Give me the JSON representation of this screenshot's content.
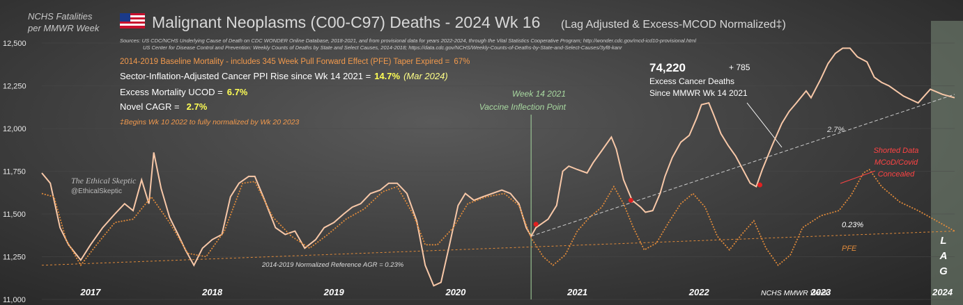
{
  "header": {
    "y_axis_caption_line1": "NCHS Fatalities",
    "y_axis_caption_line2": "per MMWR Week",
    "title": "Malignant Neoplasms (C00-C97) Deaths - 2024 Wk 16",
    "title_suffix": "(Lag Adjusted & Excess-MCOD Normalized‡)",
    "source_line1": "Sources: US CDC/NCHS Underlying Cause of Death on CDC WONDER Online Database, 2018-2021, and from provisional data for years 2022-2024, through the Vital Statistics Cooperative Program; http://wonder.cdc.gov/mcd-icd10-provisional.html",
    "source_line2": "US Center for Disease Control and Prevention: Weekly Counts of Deaths by State and Select Causes, 2014-2018; https://data.cdc.gov/NCHS/Weekly-Counts-of-Deaths-by-State-and-Select-Causes/3yf8-kanr"
  },
  "stats": {
    "baseline": "2014-2019 Baseline Mortality - includes 345 Week Pull Forward Effect (PFE) Taper Expired =",
    "baseline_value": "67%",
    "ppi_label": "Sector-Inflation-Adjusted Cancer PPI Rise since Wk 14 2021  =",
    "ppi_value": "14.7%",
    "ppi_date": "(Mar 2024)",
    "excess_label": "Excess Mortality  UCOD =",
    "excess_value": "6.7%",
    "cagr_label": "Novel CAGR =",
    "cagr_value": "2.7%",
    "footnote": "‡Begins Wk 10 2022 to fully normalized by Wk 20 2023"
  },
  "annotations": {
    "excess_total": "74,220",
    "excess_plus": "+ 785",
    "excess_line1": "Excess Cancer Deaths",
    "excess_line2": "Since MMWR Wk 14 2021",
    "inflection_line1": "Week 14 2021",
    "inflection_line2": "Vaccine Inflection Point",
    "trend_rate": "2.7%",
    "baseline_rate": "0.23%",
    "reference_label": "2014-2019 Normalized Reference AGR = 0.23%",
    "pfe": "PFE",
    "shorted_line1": "Shorted Data",
    "shorted_line2": "MCoD/Covid",
    "shorted_line3": "Concealed",
    "lag_l": "L",
    "lag_a": "A",
    "lag_g": "G",
    "x_axis_label": "NCHS MMWR Week",
    "watermark_line1": "The Ethical Skeptic",
    "watermark_line2": "@EthicalSkeptic"
  },
  "colors": {
    "actual": "#f8c8a8",
    "expected": "#e08a3a",
    "trend": "#cccccc",
    "marker": "#e02020",
    "shorted": "#ff4444",
    "inflection": "#a8d8a0"
  },
  "chart_data": {
    "type": "line",
    "title": "Malignant Neoplasms (C00-C97) Deaths - 2024 Wk 16",
    "ylabel": "NCHS Fatalities per MMWR Week",
    "xlabel": "NCHS MMWR Week",
    "ylim": [
      11000,
      12500
    ],
    "y_ticks": [
      11000,
      11250,
      11500,
      11750,
      12000,
      12250,
      12500
    ],
    "x_range": [
      2016.8,
      2024.3
    ],
    "year_labels": [
      "2017",
      "2018",
      "2019",
      "2020",
      "2021",
      "2022",
      "2023",
      "2024"
    ],
    "year_positions": [
      2017.0,
      2018.0,
      2019.0,
      2020.0,
      2021.0,
      2022.0,
      2023.0,
      2024.0
    ],
    "series": [
      {
        "name": "actual",
        "points": [
          [
            2016.8,
            11740
          ],
          [
            2016.87,
            11680
          ],
          [
            2016.95,
            11420
          ],
          [
            2017.02,
            11320
          ],
          [
            2017.12,
            11230
          ],
          [
            2017.2,
            11320
          ],
          [
            2017.3,
            11420
          ],
          [
            2017.4,
            11500
          ],
          [
            2017.48,
            11560
          ],
          [
            2017.55,
            11520
          ],
          [
            2017.62,
            11700
          ],
          [
            2017.68,
            11560
          ],
          [
            2017.72,
            11860
          ],
          [
            2017.78,
            11650
          ],
          [
            2017.85,
            11480
          ],
          [
            2017.92,
            11380
          ],
          [
            2017.98,
            11290
          ],
          [
            2018.05,
            11200
          ],
          [
            2018.12,
            11300
          ],
          [
            2018.2,
            11350
          ],
          [
            2018.28,
            11380
          ],
          [
            2018.35,
            11600
          ],
          [
            2018.42,
            11680
          ],
          [
            2018.5,
            11720
          ],
          [
            2018.55,
            11720
          ],
          [
            2018.62,
            11600
          ],
          [
            2018.72,
            11420
          ],
          [
            2018.8,
            11380
          ],
          [
            2018.88,
            11400
          ],
          [
            2018.96,
            11300
          ],
          [
            2019.05,
            11350
          ],
          [
            2019.12,
            11420
          ],
          [
            2019.2,
            11450
          ],
          [
            2019.28,
            11500
          ],
          [
            2019.35,
            11540
          ],
          [
            2019.42,
            11560
          ],
          [
            2019.5,
            11620
          ],
          [
            2019.58,
            11640
          ],
          [
            2019.65,
            11680
          ],
          [
            2019.72,
            11680
          ],
          [
            2019.8,
            11620
          ],
          [
            2019.88,
            11460
          ],
          [
            2019.95,
            11200
          ],
          [
            2020.02,
            11080
          ],
          [
            2020.08,
            11100
          ],
          [
            2020.15,
            11320
          ],
          [
            2020.22,
            11550
          ],
          [
            2020.28,
            11620
          ],
          [
            2020.35,
            11580
          ],
          [
            2020.42,
            11600
          ],
          [
            2020.5,
            11620
          ],
          [
            2020.58,
            11640
          ],
          [
            2020.65,
            11620
          ],
          [
            2020.72,
            11560
          ],
          [
            2020.78,
            11420
          ],
          [
            2020.82,
            11370
          ],
          [
            2020.86,
            11420
          ],
          [
            2020.9,
            11440
          ],
          [
            2020.96,
            11470
          ],
          [
            2021.03,
            11550
          ],
          [
            2021.08,
            11750
          ],
          [
            2021.13,
            11780
          ],
          [
            2021.2,
            11760
          ],
          [
            2021.28,
            11740
          ],
          [
            2021.33,
            11800
          ],
          [
            2021.4,
            11870
          ],
          [
            2021.48,
            11950
          ],
          [
            2021.52,
            11880
          ],
          [
            2021.58,
            11700
          ],
          [
            2021.65,
            11580
          ],
          [
            2021.72,
            11540
          ],
          [
            2021.76,
            11510
          ],
          [
            2021.82,
            11520
          ],
          [
            2021.88,
            11620
          ],
          [
            2021.92,
            11720
          ],
          [
            2021.98,
            11830
          ],
          [
            2022.05,
            11920
          ],
          [
            2022.12,
            11960
          ],
          [
            2022.18,
            12060
          ],
          [
            2022.22,
            12140
          ],
          [
            2022.28,
            12150
          ],
          [
            2022.32,
            12080
          ],
          [
            2022.38,
            11970
          ],
          [
            2022.44,
            11900
          ],
          [
            2022.5,
            11840
          ],
          [
            2022.56,
            11760
          ],
          [
            2022.62,
            11680
          ],
          [
            2022.67,
            11660
          ],
          [
            2022.72,
            11760
          ],
          [
            2022.8,
            11900
          ],
          [
            2022.88,
            12030
          ],
          [
            2022.94,
            12100
          ],
          [
            2023.0,
            12150
          ],
          [
            2023.08,
            12220
          ],
          [
            2023.12,
            12180
          ],
          [
            2023.2,
            12290
          ],
          [
            2023.26,
            12380
          ],
          [
            2023.32,
            12440
          ],
          [
            2023.38,
            12470
          ],
          [
            2023.44,
            12470
          ],
          [
            2023.5,
            12420
          ],
          [
            2023.58,
            12390
          ],
          [
            2023.64,
            12300
          ],
          [
            2023.7,
            12270
          ],
          [
            2023.76,
            12250
          ],
          [
            2023.82,
            12220
          ],
          [
            2023.88,
            12190
          ],
          [
            2024.0,
            12150
          ],
          [
            2024.1,
            12230
          ],
          [
            2024.2,
            12200
          ],
          [
            2024.3,
            12180
          ]
        ]
      },
      {
        "name": "expected",
        "points": [
          [
            2016.8,
            11620
          ],
          [
            2016.9,
            11600
          ],
          [
            2017.0,
            11350
          ],
          [
            2017.12,
            11200
          ],
          [
            2017.25,
            11320
          ],
          [
            2017.4,
            11450
          ],
          [
            2017.55,
            11470
          ],
          [
            2017.7,
            11600
          ],
          [
            2017.85,
            11450
          ],
          [
            2018.0,
            11270
          ],
          [
            2018.15,
            11250
          ],
          [
            2018.3,
            11400
          ],
          [
            2018.45,
            11680
          ],
          [
            2018.55,
            11690
          ],
          [
            2018.7,
            11480
          ],
          [
            2018.85,
            11370
          ],
          [
            2019.0,
            11300
          ],
          [
            2019.15,
            11380
          ],
          [
            2019.3,
            11470
          ],
          [
            2019.45,
            11530
          ],
          [
            2019.6,
            11630
          ],
          [
            2019.72,
            11660
          ],
          [
            2019.85,
            11500
          ],
          [
            2019.95,
            11320
          ],
          [
            2020.05,
            11320
          ],
          [
            2020.18,
            11420
          ],
          [
            2020.3,
            11560
          ],
          [
            2020.45,
            11600
          ],
          [
            2020.6,
            11620
          ],
          [
            2020.72,
            11550
          ],
          [
            2020.82,
            11360
          ],
          [
            2020.92,
            11250
          ],
          [
            2021.0,
            11200
          ],
          [
            2021.1,
            11260
          ],
          [
            2021.2,
            11400
          ],
          [
            2021.3,
            11480
          ],
          [
            2021.4,
            11540
          ],
          [
            2021.5,
            11660
          ],
          [
            2021.58,
            11560
          ],
          [
            2021.66,
            11420
          ],
          [
            2021.75,
            11290
          ],
          [
            2021.85,
            11330
          ],
          [
            2021.95,
            11450
          ],
          [
            2022.05,
            11560
          ],
          [
            2022.15,
            11620
          ],
          [
            2022.25,
            11540
          ],
          [
            2022.35,
            11370
          ],
          [
            2022.45,
            11290
          ],
          [
            2022.55,
            11380
          ],
          [
            2022.65,
            11460
          ],
          [
            2022.75,
            11300
          ],
          [
            2022.85,
            11200
          ],
          [
            2022.95,
            11260
          ],
          [
            2023.05,
            11420
          ],
          [
            2023.2,
            11490
          ],
          [
            2023.35,
            11520
          ],
          [
            2023.45,
            11610
          ],
          [
            2023.55,
            11740
          ],
          [
            2023.6,
            11760
          ],
          [
            2023.7,
            11660
          ],
          [
            2023.85,
            11570
          ],
          [
            2024.0,
            11520
          ],
          [
            2024.15,
            11460
          ],
          [
            2024.3,
            11400
          ]
        ]
      }
    ],
    "trend_lines": [
      {
        "name": "2014-2019 Normalized Reference AGR = 0.23%",
        "from": [
          2016.8,
          11200
        ],
        "to": [
          2024.3,
          11400
        ]
      },
      {
        "name": "2.7%",
        "from": [
          2020.82,
          11370
        ],
        "to": [
          2024.3,
          12200
        ]
      }
    ],
    "markers": [
      [
        2020.86,
        11440
      ],
      [
        2021.64,
        11580
      ],
      [
        2022.7,
        11670
      ]
    ],
    "inflection_x": 2020.82
  }
}
